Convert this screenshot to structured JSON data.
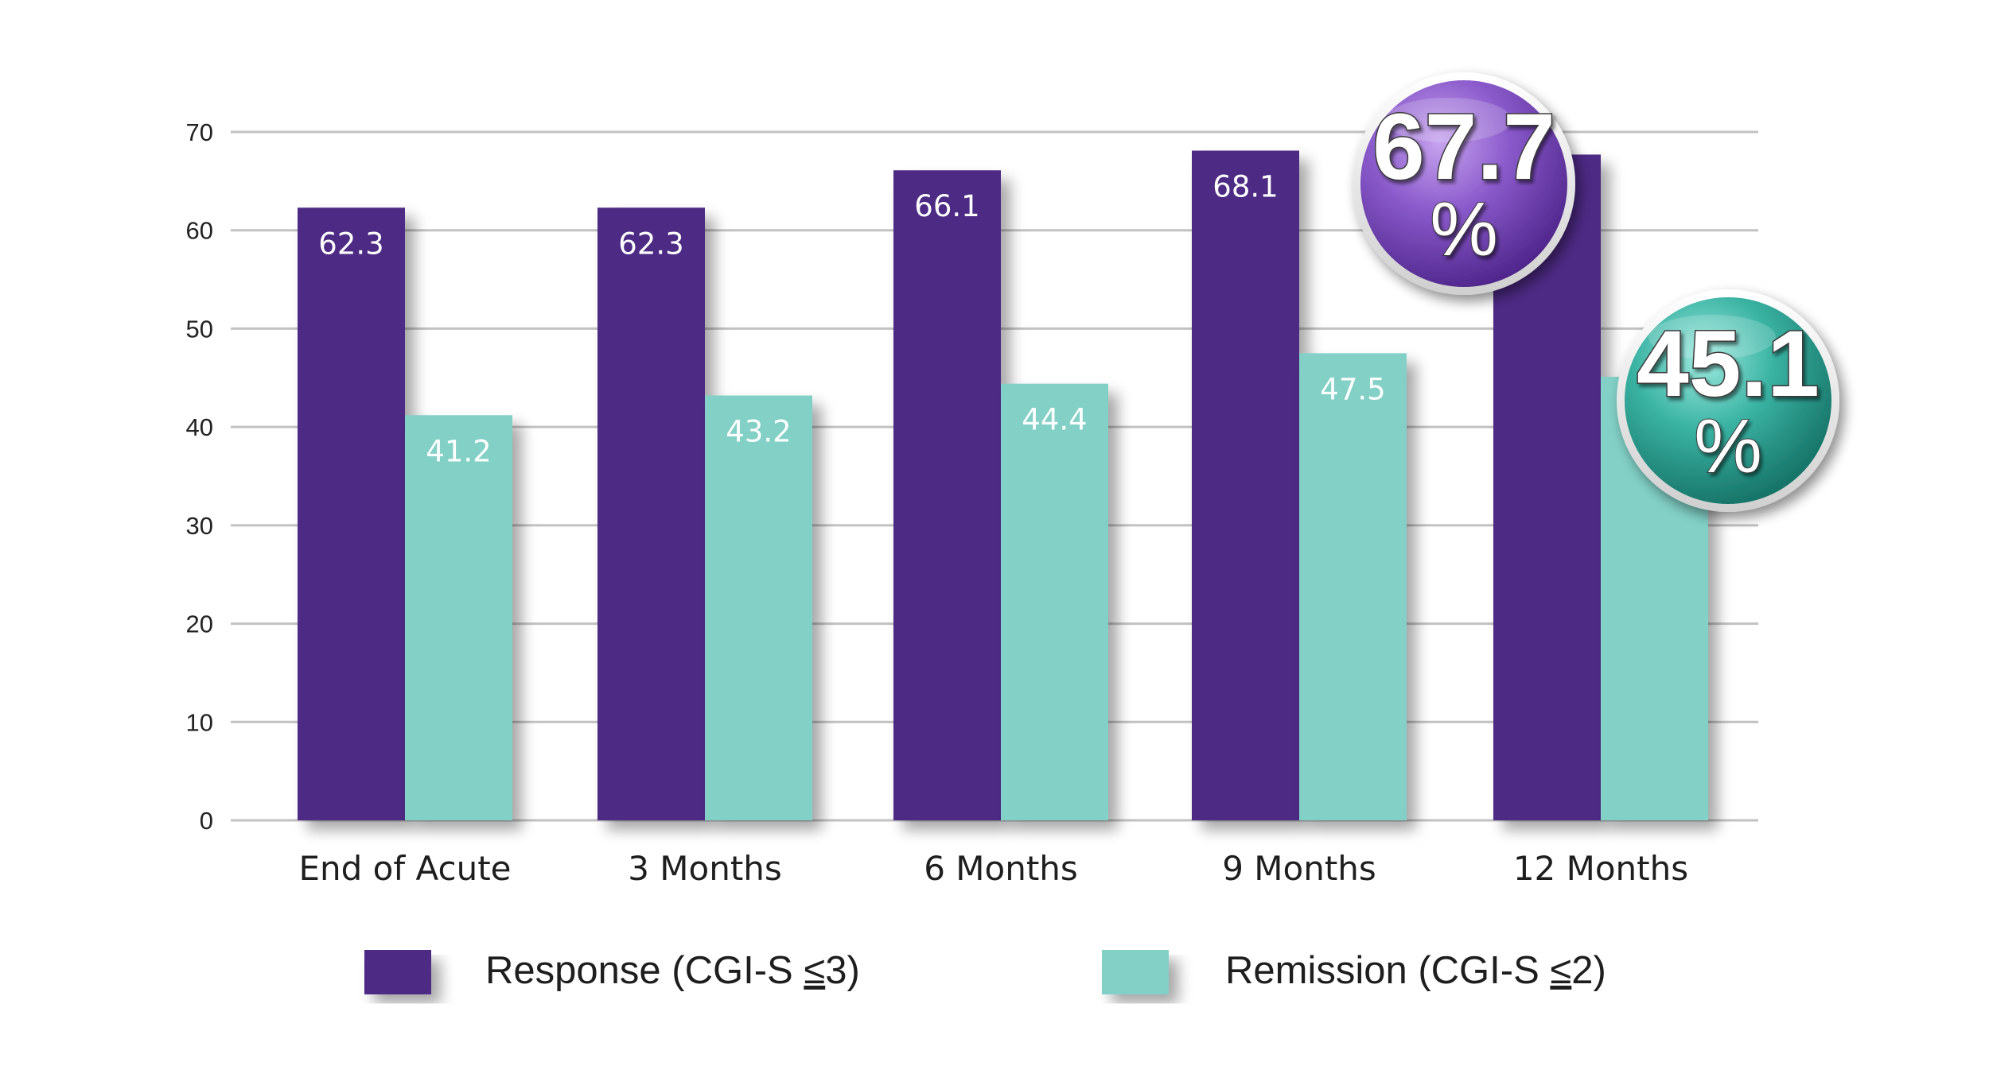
{
  "chart_data": {
    "type": "bar",
    "title": "",
    "xlabel": "",
    "ylabel": "",
    "ylim": [
      0,
      70
    ],
    "yticks": [
      0,
      10,
      20,
      30,
      40,
      50,
      60,
      70
    ],
    "grid": true,
    "categories": [
      "End of Acute",
      "3 Months",
      "6 Months",
      "9 Months",
      "12 Months"
    ],
    "series": [
      {
        "name": "Response (CGI-S ≤3)",
        "color": "#4e2a84",
        "values": [
          62.3,
          62.3,
          66.1,
          68.1,
          67.7
        ],
        "labels": [
          "62.3",
          "62.3",
          "66.1",
          "68.1",
          ""
        ]
      },
      {
        "name": "Remission (CGI-S ≤2)",
        "color": "#82d0c6",
        "values": [
          41.2,
          43.2,
          44.4,
          47.5,
          45.1
        ],
        "labels": [
          "41.2",
          "43.2",
          "44.4",
          "47.5",
          ""
        ]
      }
    ],
    "legend": {
      "placement": "bottom",
      "items": [
        {
          "prefix": "Response (CGI-S ",
          "symbol": "≤",
          "suffix": "3)",
          "color": "#4e2a84"
        },
        {
          "prefix": "Remission (CGI-S ",
          "symbol": "≤",
          "suffix": "2)",
          "color": "#82d0c6"
        }
      ]
    },
    "annotations": [
      {
        "name": "response-12-month-badge",
        "text": "67.7",
        "unit": "%",
        "series": 0,
        "category": 4,
        "theme": "purple"
      },
      {
        "name": "remission-12-month-badge",
        "text": "45.1",
        "unit": "%",
        "series": 1,
        "category": 4,
        "theme": "teal"
      }
    ]
  }
}
